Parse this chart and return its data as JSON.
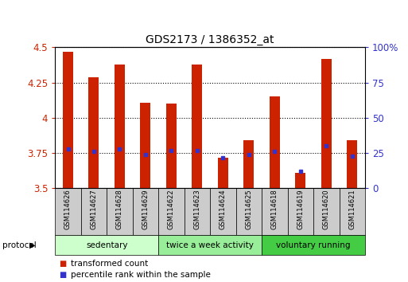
{
  "title": "GDS2173 / 1386352_at",
  "samples": [
    "GSM114626",
    "GSM114627",
    "GSM114628",
    "GSM114629",
    "GSM114622",
    "GSM114623",
    "GSM114624",
    "GSM114625",
    "GSM114618",
    "GSM114619",
    "GSM114620",
    "GSM114621"
  ],
  "transformed_count": [
    4.47,
    4.29,
    4.38,
    4.11,
    4.1,
    4.38,
    3.72,
    3.84,
    4.15,
    3.61,
    4.42,
    3.84
  ],
  "percentile_rank": [
    28,
    26,
    28,
    24,
    27,
    27,
    22,
    24,
    26,
    12,
    30,
    23
  ],
  "ymin": 3.5,
  "ymax": 4.5,
  "yticks": [
    3.5,
    3.75,
    4.0,
    4.25,
    4.5
  ],
  "ytick_labels": [
    "3.5",
    "3.75",
    "4",
    "4.25",
    "4.5"
  ],
  "right_yticks": [
    0,
    25,
    50,
    75,
    100
  ],
  "right_ytick_labels": [
    "0",
    "25",
    "50",
    "75",
    "100%"
  ],
  "bar_color": "#cc2200",
  "dot_color": "#3333cc",
  "groups": [
    {
      "label": "sedentary",
      "start": 0,
      "end": 4,
      "color": "#ccffcc"
    },
    {
      "label": "twice a week activity",
      "start": 4,
      "end": 8,
      "color": "#99ee99"
    },
    {
      "label": "voluntary running",
      "start": 8,
      "end": 12,
      "color": "#44cc44"
    }
  ],
  "protocol_label": "protocol",
  "legend": [
    {
      "color": "#cc2200",
      "label": "transformed count"
    },
    {
      "color": "#3333cc",
      "label": "percentile rank within the sample"
    }
  ],
  "background_color": "#ffffff",
  "label_area_color": "#cccccc",
  "bar_width": 0.4
}
